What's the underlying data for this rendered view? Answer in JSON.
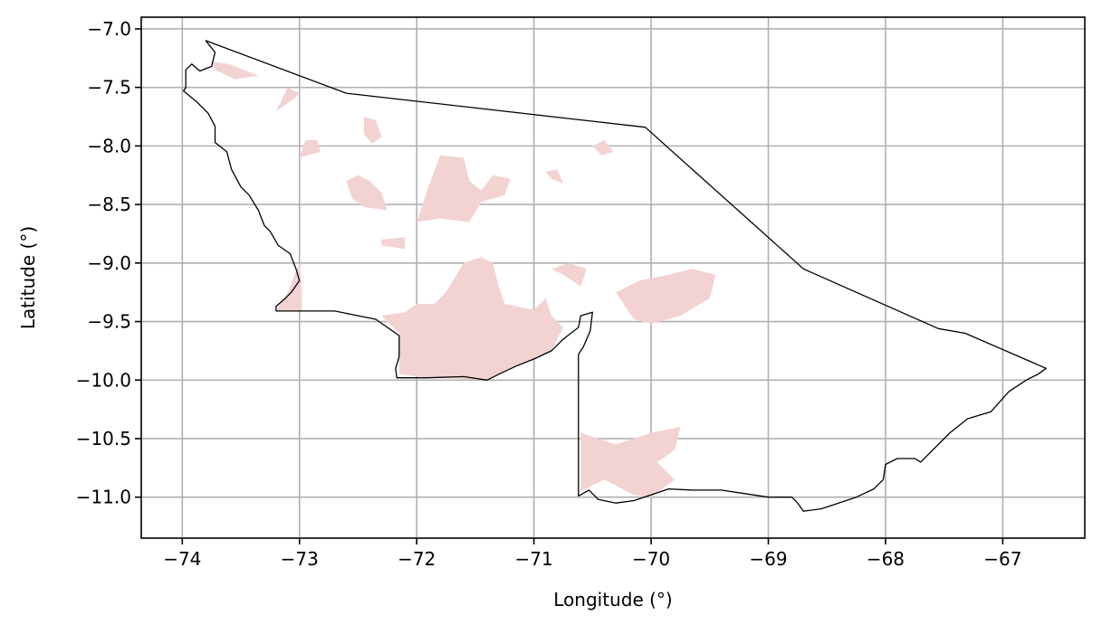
{
  "chart_data": {
    "type": "map",
    "title": "",
    "xlabel": "Longitude (°)",
    "ylabel": "Latitude (°)",
    "xlim": [
      -74.35,
      -66.3
    ],
    "ylim": [
      -11.35,
      -6.9
    ],
    "xticks": [
      -74,
      -73,
      -72,
      -71,
      -70,
      -69,
      -68,
      -67
    ],
    "xtick_labels": [
      "−74",
      "−73",
      "−72",
      "−71",
      "−70",
      "−69",
      "−68",
      "−67"
    ],
    "yticks": [
      -7.0,
      -7.5,
      -8.0,
      -8.5,
      -9.0,
      -9.5,
      -10.0,
      -10.5,
      -11.0
    ],
    "ytick_labels": [
      "−7.0",
      "−7.5",
      "−8.0",
      "−8.5",
      "−9.0",
      "−9.5",
      "−10.0",
      "−10.5",
      "−11.0"
    ],
    "grid": true,
    "colors": {
      "boundary": "#000000",
      "fill": "#f2d3d1",
      "grid": "#b0b0b0"
    },
    "boundary": [
      [
        -73.8,
        -7.1
      ],
      [
        -73.72,
        -7.2
      ],
      [
        -73.75,
        -7.32
      ],
      [
        -73.85,
        -7.36
      ],
      [
        -73.92,
        -7.3
      ],
      [
        -73.97,
        -7.35
      ],
      [
        -73.97,
        -7.5
      ],
      [
        -73.99,
        -7.53
      ],
      [
        -73.88,
        -7.62
      ],
      [
        -73.78,
        -7.72
      ],
      [
        -73.72,
        -7.83
      ],
      [
        -73.72,
        -7.92
      ],
      [
        -73.72,
        -7.97
      ],
      [
        -73.62,
        -8.05
      ],
      [
        -73.58,
        -8.2
      ],
      [
        -73.5,
        -8.35
      ],
      [
        -73.43,
        -8.42
      ],
      [
        -73.35,
        -8.55
      ],
      [
        -73.3,
        -8.68
      ],
      [
        -73.25,
        -8.73
      ],
      [
        -73.18,
        -8.85
      ],
      [
        -73.08,
        -8.92
      ],
      [
        -73.03,
        -9.05
      ],
      [
        -73.0,
        -9.15
      ],
      [
        -73.07,
        -9.25
      ],
      [
        -73.12,
        -9.3
      ],
      [
        -73.2,
        -9.37
      ],
      [
        -73.2,
        -9.41
      ],
      [
        -72.7,
        -9.41
      ],
      [
        -72.5,
        -9.45
      ],
      [
        -72.35,
        -9.48
      ],
      [
        -72.25,
        -9.55
      ],
      [
        -72.15,
        -9.62
      ],
      [
        -72.15,
        -9.8
      ],
      [
        -72.18,
        -9.9
      ],
      [
        -72.17,
        -9.98
      ],
      [
        -71.9,
        -9.98
      ],
      [
        -71.6,
        -9.97
      ],
      [
        -71.4,
        -10.0
      ],
      [
        -71.3,
        -9.95
      ],
      [
        -71.15,
        -9.88
      ],
      [
        -71.0,
        -9.82
      ],
      [
        -70.85,
        -9.75
      ],
      [
        -70.75,
        -9.65
      ],
      [
        -70.62,
        -9.55
      ],
      [
        -70.6,
        -9.45
      ],
      [
        -70.5,
        -9.42
      ],
      [
        -70.52,
        -9.58
      ],
      [
        -70.58,
        -9.72
      ],
      [
        -70.62,
        -9.78
      ],
      [
        -70.62,
        -9.95
      ],
      [
        -70.62,
        -10.3
      ],
      [
        -70.62,
        -10.7
      ],
      [
        -70.62,
        -10.99
      ],
      [
        -70.53,
        -10.94
      ],
      [
        -70.45,
        -11.02
      ],
      [
        -70.3,
        -11.05
      ],
      [
        -70.15,
        -11.03
      ],
      [
        -70.0,
        -10.98
      ],
      [
        -69.85,
        -10.93
      ],
      [
        -69.65,
        -10.94
      ],
      [
        -69.4,
        -10.94
      ],
      [
        -69.2,
        -10.97
      ],
      [
        -69.0,
        -11.0
      ],
      [
        -68.8,
        -11.0
      ],
      [
        -68.75,
        -11.05
      ],
      [
        -68.7,
        -11.12
      ],
      [
        -68.55,
        -11.1
      ],
      [
        -68.4,
        -11.05
      ],
      [
        -68.25,
        -11.0
      ],
      [
        -68.1,
        -10.93
      ],
      [
        -68.02,
        -10.85
      ],
      [
        -68.0,
        -10.72
      ],
      [
        -67.9,
        -10.67
      ],
      [
        -67.75,
        -10.67
      ],
      [
        -67.7,
        -10.7
      ],
      [
        -67.6,
        -10.6
      ],
      [
        -67.45,
        -10.45
      ],
      [
        -67.3,
        -10.33
      ],
      [
        -67.1,
        -10.27
      ],
      [
        -66.95,
        -10.1
      ],
      [
        -66.8,
        -10.0
      ],
      [
        -66.7,
        -9.95
      ],
      [
        -66.63,
        -9.9
      ],
      [
        -67.32,
        -9.6
      ],
      [
        -67.55,
        -9.56
      ],
      [
        -68.7,
        -9.05
      ],
      [
        -70.05,
        -7.84
      ],
      [
        -72.6,
        -7.55
      ],
      [
        -73.8,
        -7.1
      ]
    ],
    "shaded_regions": [
      [
        [
          -73.75,
          -7.28
        ],
        [
          -73.6,
          -7.3
        ],
        [
          -73.35,
          -7.4
        ],
        [
          -73.55,
          -7.43
        ],
        [
          -73.72,
          -7.35
        ]
      ],
      [
        [
          -73.2,
          -7.7
        ],
        [
          -73.1,
          -7.5
        ],
        [
          -73.0,
          -7.55
        ],
        [
          -73.05,
          -7.6
        ]
      ],
      [
        [
          -72.45,
          -7.75
        ],
        [
          -72.35,
          -7.78
        ],
        [
          -72.3,
          -7.92
        ],
        [
          -72.38,
          -7.98
        ],
        [
          -72.45,
          -7.9
        ]
      ],
      [
        [
          -73.0,
          -8.1
        ],
        [
          -72.95,
          -7.95
        ],
        [
          -72.85,
          -7.95
        ],
        [
          -72.82,
          -8.05
        ]
      ],
      [
        [
          -72.6,
          -8.3
        ],
        [
          -72.5,
          -8.25
        ],
        [
          -72.4,
          -8.3
        ],
        [
          -72.3,
          -8.4
        ],
        [
          -72.25,
          -8.55
        ],
        [
          -72.45,
          -8.52
        ],
        [
          -72.55,
          -8.45
        ]
      ],
      [
        [
          -71.9,
          -8.35
        ],
        [
          -71.8,
          -8.08
        ],
        [
          -71.6,
          -8.1
        ],
        [
          -71.55,
          -8.3
        ],
        [
          -71.45,
          -8.38
        ],
        [
          -71.35,
          -8.25
        ],
        [
          -71.2,
          -8.28
        ],
        [
          -71.25,
          -8.42
        ],
        [
          -71.45,
          -8.48
        ],
        [
          -71.55,
          -8.65
        ],
        [
          -71.8,
          -8.62
        ],
        [
          -72.0,
          -8.65
        ]
      ],
      [
        [
          -72.3,
          -8.8
        ],
        [
          -72.1,
          -8.78
        ],
        [
          -72.1,
          -8.88
        ],
        [
          -72.3,
          -8.85
        ]
      ],
      [
        [
          -70.5,
          -8.0
        ],
        [
          -70.4,
          -7.95
        ],
        [
          -70.32,
          -8.05
        ],
        [
          -70.42,
          -8.08
        ]
      ],
      [
        [
          -70.9,
          -8.22
        ],
        [
          -70.8,
          -8.2
        ],
        [
          -70.75,
          -8.32
        ],
        [
          -70.85,
          -8.28
        ]
      ],
      [
        [
          -73.0,
          -9.0
        ],
        [
          -73.1,
          -9.25
        ],
        [
          -73.2,
          -9.41
        ],
        [
          -72.98,
          -9.41
        ],
        [
          -72.98,
          -9.2
        ]
      ],
      [
        [
          -71.6,
          -9.0
        ],
        [
          -71.45,
          -8.95
        ],
        [
          -71.35,
          -9.0
        ],
        [
          -71.3,
          -9.2
        ],
        [
          -71.25,
          -9.35
        ],
        [
          -71.0,
          -9.4
        ],
        [
          -70.9,
          -9.3
        ],
        [
          -70.85,
          -9.45
        ],
        [
          -70.75,
          -9.55
        ],
        [
          -70.85,
          -9.75
        ],
        [
          -71.0,
          -9.82
        ],
        [
          -71.15,
          -9.88
        ],
        [
          -71.4,
          -10.0
        ],
        [
          -71.9,
          -9.98
        ],
        [
          -72.15,
          -9.95
        ],
        [
          -72.15,
          -9.6
        ],
        [
          -72.3,
          -9.45
        ],
        [
          -72.1,
          -9.42
        ],
        [
          -72.0,
          -9.35
        ],
        [
          -71.85,
          -9.35
        ],
        [
          -71.75,
          -9.25
        ]
      ],
      [
        [
          -70.85,
          -9.05
        ],
        [
          -70.7,
          -9.0
        ],
        [
          -70.55,
          -9.05
        ],
        [
          -70.6,
          -9.2
        ],
        [
          -70.75,
          -9.1
        ]
      ],
      [
        [
          -69.85,
          -9.1
        ],
        [
          -69.65,
          -9.05
        ],
        [
          -69.45,
          -9.1
        ],
        [
          -69.5,
          -9.3
        ],
        [
          -69.75,
          -9.45
        ],
        [
          -70.0,
          -9.52
        ],
        [
          -70.15,
          -9.48
        ],
        [
          -70.3,
          -9.25
        ],
        [
          -70.1,
          -9.15
        ]
      ],
      [
        [
          -70.6,
          -10.45
        ],
        [
          -70.45,
          -10.5
        ],
        [
          -70.3,
          -10.55
        ],
        [
          -70.0,
          -10.45
        ],
        [
          -69.75,
          -10.4
        ],
        [
          -69.8,
          -10.6
        ],
        [
          -69.95,
          -10.7
        ],
        [
          -69.8,
          -10.85
        ],
        [
          -70.0,
          -11.0
        ],
        [
          -70.15,
          -10.98
        ],
        [
          -70.4,
          -10.85
        ],
        [
          -70.6,
          -10.95
        ]
      ]
    ]
  }
}
